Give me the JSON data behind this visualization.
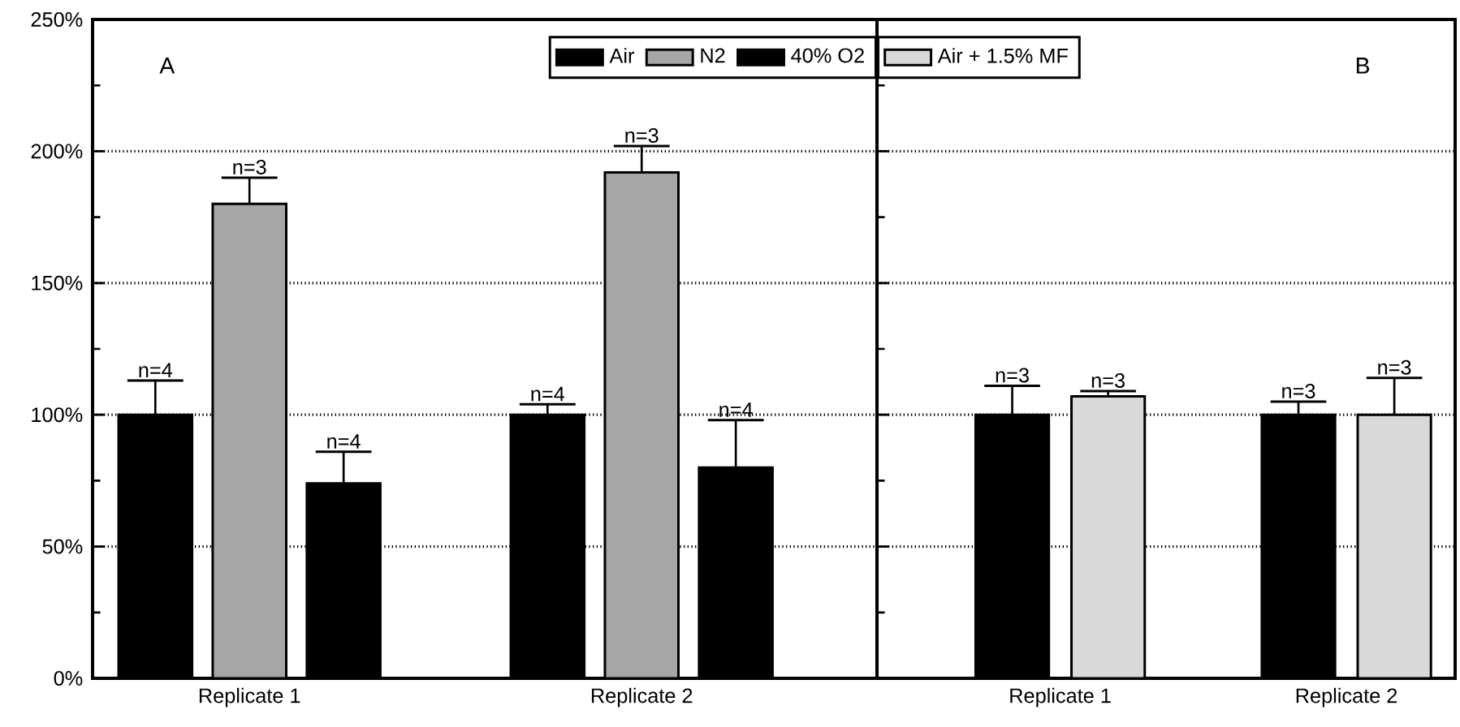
{
  "chart_data": [
    {
      "type": "bar",
      "categories": [
        "Replicate 1",
        "Replicate 2"
      ],
      "series": [
        {
          "name": "Air",
          "color": "#000000",
          "values": [
            100,
            100
          ],
          "errors": [
            13,
            4
          ]
        },
        {
          "name": "N2",
          "color": "#a6a6a6",
          "values": [
            180,
            192
          ],
          "errors": [
            10,
            10
          ]
        },
        {
          "name": "40% O2",
          "color": "#000000",
          "values": [
            74,
            80
          ],
          "errors": [
            12,
            18
          ]
        }
      ],
      "ylim": [
        0,
        250
      ],
      "yticks": [
        {
          "value": 0,
          "label": "0%"
        },
        {
          "value": 50,
          "label": "50%"
        },
        {
          "value": 100,
          "label": "100%"
        },
        {
          "value": 150,
          "label": "150%"
        },
        {
          "value": 200,
          "label": "200%"
        },
        {
          "value": 250,
          "label": "250%"
        }
      ],
      "grid": "y",
      "legend": "top right",
      "annotations": [
        "A",
        "n=4",
        "n=3",
        "n=4",
        "n=4",
        "n=3",
        "n=4"
      ]
    },
    {
      "type": "bar",
      "categories": [
        "Replicate 1",
        "Replicate 2"
      ],
      "series": [
        {
          "color": "#000000",
          "values": [
            100,
            100
          ],
          "errors": [
            11,
            5
          ]
        },
        {
          "name": "Air + 1.5% MF",
          "color": "#d9d9d9",
          "values": [
            107,
            100
          ],
          "errors": [
            2,
            14
          ]
        }
      ],
      "ylim": [
        0,
        250
      ],
      "yticks": [
        0,
        50,
        100,
        150,
        200,
        250
      ],
      "grid": "y",
      "legend": "top left",
      "tick_labels": "x",
      "annotations": [
        "B",
        "n=3",
        "n=3",
        "n=3",
        "n=3"
      ]
    }
  ]
}
